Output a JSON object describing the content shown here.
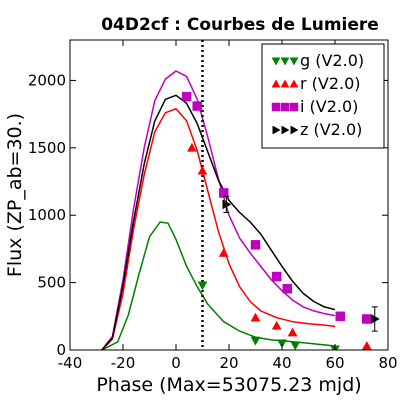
{
  "chart_data": {
    "type": "scatter",
    "title": "04D2cf : Courbes de Lumiere",
    "xlabel": "Phase (Max=53075.23 mjd)",
    "ylabel": "Flux (ZP_ab=30.)",
    "xlim": [
      -40,
      80
    ],
    "ylim": [
      0,
      2300
    ],
    "xticks": [
      -40,
      -20,
      0,
      20,
      40,
      60,
      80
    ],
    "yticks": [
      0,
      500,
      1000,
      1500,
      2000
    ],
    "xtick_labels": [
      "-40",
      "-20",
      "0",
      "20",
      "40",
      "60",
      "80"
    ],
    "ytick_labels": [
      "0",
      "500",
      "1000",
      "1500",
      "2000"
    ],
    "vertical_marker_x": 10,
    "legend_position": "top-right",
    "series": [
      {
        "name": "g (V2.0)",
        "color": "#008000",
        "marker": "triangle-down",
        "points": [
          [
            10,
            480
          ],
          [
            30,
            70
          ],
          [
            40,
            50
          ],
          [
            45,
            35
          ],
          [
            60,
            5
          ]
        ],
        "curve": [
          [
            -28,
            0
          ],
          [
            -22,
            60
          ],
          [
            -18,
            260
          ],
          [
            -14,
            560
          ],
          [
            -10,
            840
          ],
          [
            -6,
            950
          ],
          [
            -3,
            940
          ],
          [
            0,
            820
          ],
          [
            4,
            620
          ],
          [
            8,
            470
          ],
          [
            12,
            340
          ],
          [
            18,
            210
          ],
          [
            24,
            140
          ],
          [
            30,
            95
          ],
          [
            36,
            75
          ],
          [
            42,
            65
          ],
          [
            50,
            50
          ],
          [
            60,
            30
          ]
        ]
      },
      {
        "name": "r (V2.0)",
        "color": "#ff0000",
        "marker": "triangle-up",
        "points": [
          [
            6,
            1500
          ],
          [
            10,
            1330
          ],
          [
            18,
            720
          ],
          [
            30,
            240
          ],
          [
            38,
            180
          ],
          [
            44,
            130
          ],
          [
            72,
            30
          ]
        ],
        "curve": [
          [
            -28,
            0
          ],
          [
            -24,
            80
          ],
          [
            -20,
            420
          ],
          [
            -16,
            900
          ],
          [
            -12,
            1300
          ],
          [
            -8,
            1620
          ],
          [
            -4,
            1760
          ],
          [
            0,
            1790
          ],
          [
            4,
            1700
          ],
          [
            8,
            1480
          ],
          [
            12,
            1180
          ],
          [
            16,
            880
          ],
          [
            20,
            640
          ],
          [
            24,
            470
          ],
          [
            28,
            360
          ],
          [
            32,
            290
          ],
          [
            38,
            240
          ],
          [
            44,
            210
          ],
          [
            50,
            195
          ],
          [
            56,
            185
          ],
          [
            60,
            175
          ]
        ]
      },
      {
        "name": "i (V2.0)",
        "color": "#bf00bf",
        "marker": "square",
        "points": [
          [
            4,
            1880
          ],
          [
            8,
            1810
          ],
          [
            18,
            1165
          ],
          [
            30,
            780
          ],
          [
            38,
            545
          ],
          [
            42,
            455
          ],
          [
            62,
            250
          ],
          [
            72,
            230
          ]
        ],
        "curve": [
          [
            -28,
            0
          ],
          [
            -24,
            100
          ],
          [
            -20,
            520
          ],
          [
            -16,
            1050
          ],
          [
            -12,
            1500
          ],
          [
            -8,
            1850
          ],
          [
            -4,
            2010
          ],
          [
            0,
            2070
          ],
          [
            4,
            2030
          ],
          [
            8,
            1860
          ],
          [
            12,
            1580
          ],
          [
            16,
            1270
          ],
          [
            20,
            1000
          ],
          [
            24,
            830
          ],
          [
            28,
            720
          ],
          [
            32,
            620
          ],
          [
            36,
            520
          ],
          [
            40,
            440
          ],
          [
            44,
            370
          ],
          [
            48,
            320
          ],
          [
            52,
            290
          ],
          [
            56,
            270
          ],
          [
            60,
            255
          ]
        ]
      },
      {
        "name": "z (V2.0)",
        "color": "#000000",
        "marker": "triangle-right",
        "points": [
          [
            19,
            1080
          ],
          [
            75,
            230
          ]
        ],
        "errors": [
          [
            19,
            60
          ],
          [
            75,
            90
          ]
        ],
        "curve": [
          [
            -28,
            0
          ],
          [
            -24,
            90
          ],
          [
            -20,
            480
          ],
          [
            -16,
            960
          ],
          [
            -12,
            1380
          ],
          [
            -8,
            1700
          ],
          [
            -4,
            1860
          ],
          [
            0,
            1890
          ],
          [
            4,
            1830
          ],
          [
            8,
            1680
          ],
          [
            12,
            1470
          ],
          [
            16,
            1260
          ],
          [
            20,
            1110
          ],
          [
            24,
            1020
          ],
          [
            28,
            950
          ],
          [
            32,
            860
          ],
          [
            36,
            740
          ],
          [
            40,
            620
          ],
          [
            44,
            510
          ],
          [
            48,
            420
          ],
          [
            52,
            360
          ],
          [
            56,
            320
          ],
          [
            60,
            300
          ]
        ]
      }
    ]
  }
}
